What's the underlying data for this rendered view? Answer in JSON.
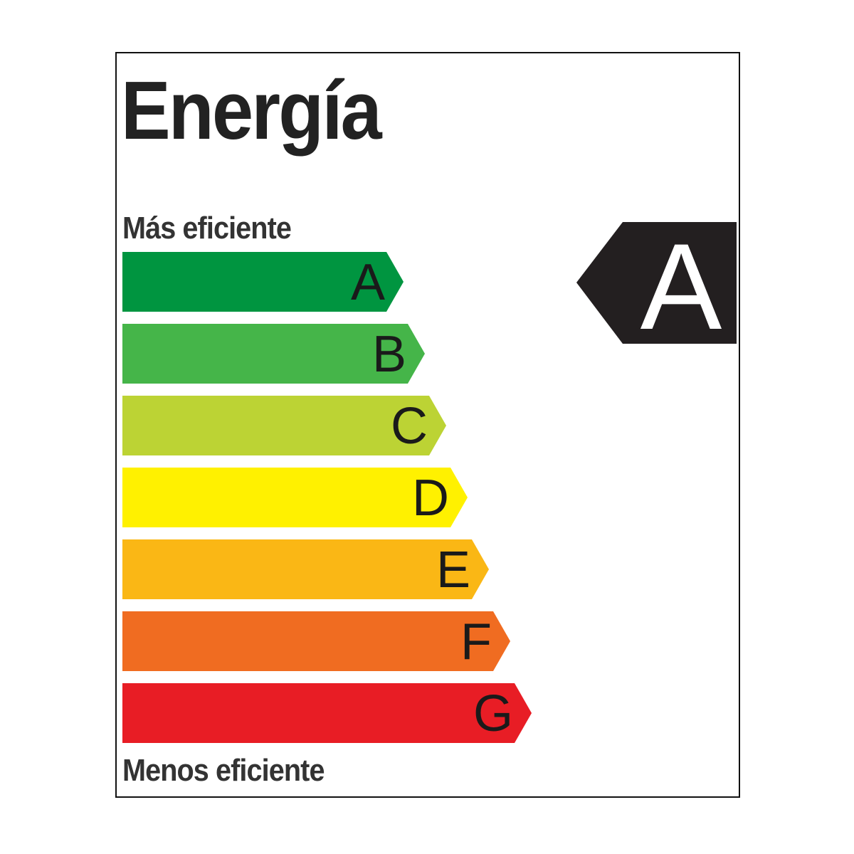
{
  "title": "Energía",
  "top_caption": "Más eficiente",
  "bottom_caption": "Menos eficiente",
  "classes": [
    {
      "letter": "A",
      "color": "#009540"
    },
    {
      "letter": "B",
      "color": "#45B549"
    },
    {
      "letter": "C",
      "color": "#BCD334"
    },
    {
      "letter": "D",
      "color": "#FFF100"
    },
    {
      "letter": "E",
      "color": "#FAB715"
    },
    {
      "letter": "F",
      "color": "#F06C21"
    },
    {
      "letter": "G",
      "color": "#E81D25"
    }
  ],
  "rating": {
    "letter": "A",
    "color": "#231F20"
  }
}
